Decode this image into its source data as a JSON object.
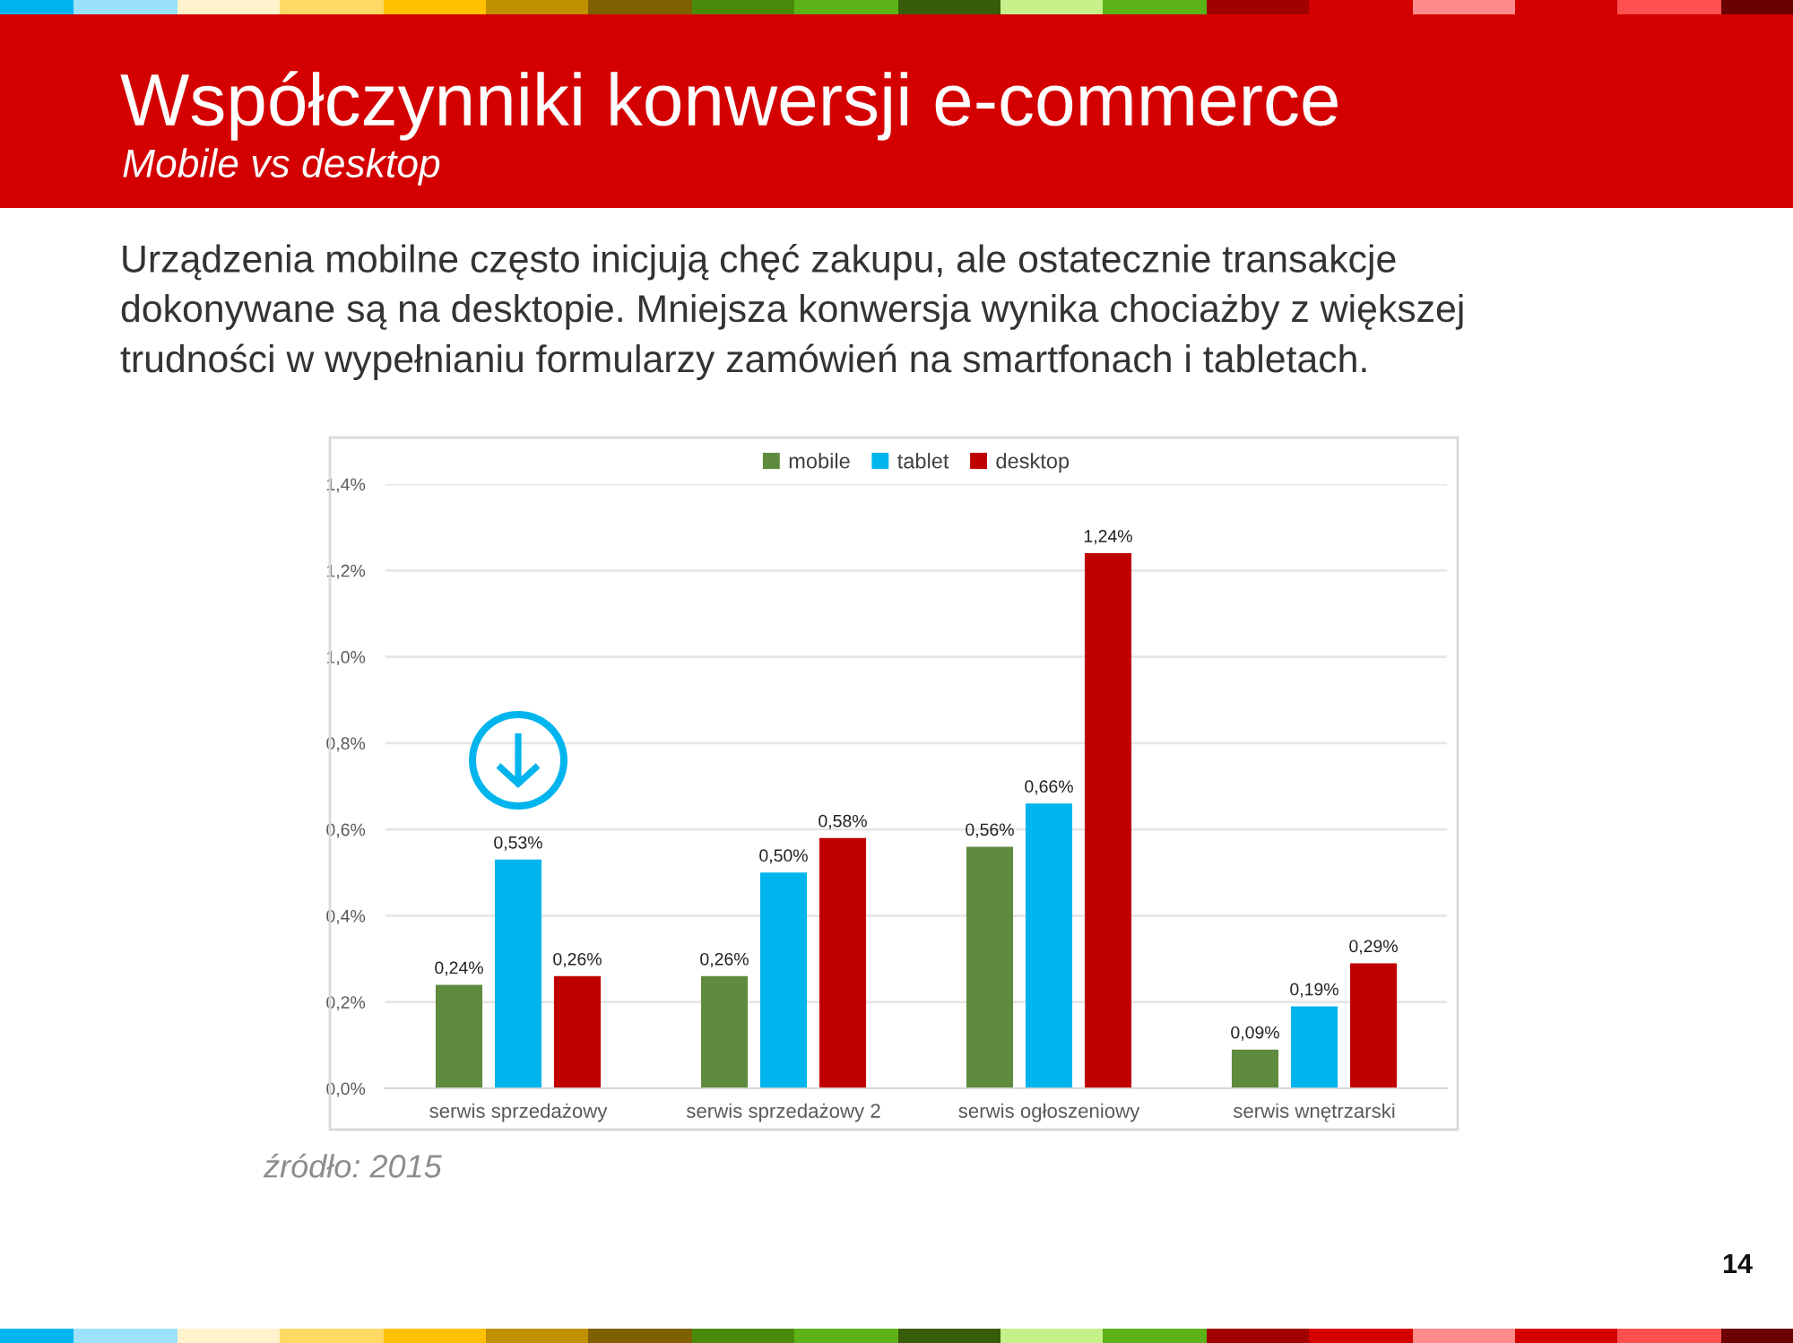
{
  "chart_data": {
    "type": "bar",
    "title": "Współczynniki konwersji e-commerce",
    "subtitle": "Mobile vs desktop",
    "annotations": [
      "Urządzenia mobilne często inicjują chęć zakupu, ale ostatecznie transakcje\ndokonywane są na desktopie. Mniejsza konwersja wynika chociażby z większej\ntrudności w wypełnianiu formularzy zamówień na smartfonach i tabletach.",
      "źródło: 2015",
      "14"
    ],
    "categories": [
      "serwis sprzedażowy",
      "serwis sprzedażowy 2",
      "serwis ogłoszeniowy",
      "serwis wnętrzarski"
    ],
    "series": [
      {
        "name": "mobile",
        "color": "#5f8b3e",
        "values": [
          0.24,
          0.26,
          0.56,
          0.09
        ],
        "value_labels": [
          "0,24%",
          "0,26%",
          "0,56%",
          "0,09%"
        ]
      },
      {
        "name": "tablet",
        "color": "#00b4ee",
        "values": [
          0.53,
          0.5,
          0.66,
          0.19
        ],
        "value_labels": [
          "0,53%",
          "0,50%",
          "0,66%",
          "0,19%"
        ]
      },
      {
        "name": "desktop",
        "color": "#c00000",
        "values": [
          0.26,
          0.58,
          1.24,
          0.29
        ],
        "value_labels": [
          "0,26%",
          "0,58%",
          "1,24%",
          "0,29%"
        ]
      }
    ],
    "ylim": [
      0,
      1.4
    ],
    "yticks": [
      {
        "value": 0,
        "label": "0,0%"
      },
      {
        "value": 0.2,
        "label": "0,2%"
      },
      {
        "value": 0.4,
        "label": "0,4%"
      },
      {
        "value": 0.6,
        "label": "0,6%"
      },
      {
        "value": 0.8,
        "label": "0,8%"
      },
      {
        "value": 1.0,
        "label": "1,0%"
      },
      {
        "value": 1.2,
        "label": "1,2%"
      },
      {
        "value": 1.4,
        "label": "1,4%"
      }
    ],
    "grid": "y",
    "legend": "top"
  }
}
